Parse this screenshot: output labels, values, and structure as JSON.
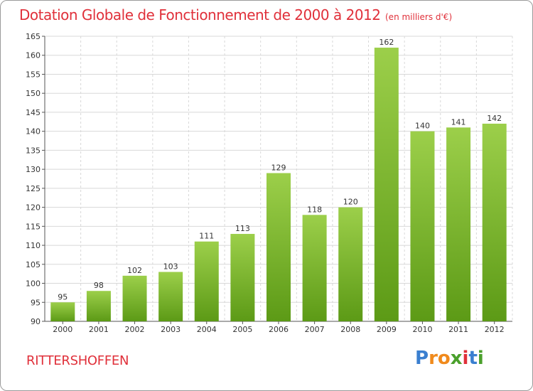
{
  "header": {
    "title": "Dotation Globale de Fonctionnement de 2000 à 2012",
    "subtitle": "(en milliers d'€)"
  },
  "footer": {
    "commune": "RITTERSHOFFEN",
    "logo_text": "Proxiti",
    "logo_letters": [
      {
        "ch": "P",
        "color": "#3a7fd0"
      },
      {
        "ch": "r",
        "color": "#f08a1c"
      },
      {
        "ch": "o",
        "color": "#f08a1c"
      },
      {
        "ch": "x",
        "color": "#4aa02c"
      },
      {
        "ch": "i",
        "color": "#e0303a"
      },
      {
        "ch": "t",
        "color": "#3a7fd0"
      },
      {
        "ch": "i",
        "color": "#4aa02c"
      }
    ]
  },
  "colors": {
    "title": "#e0303a",
    "bar_light": "#9ccf4a",
    "bar_dark": "#5c9a16",
    "grid": "#d8d8d8"
  },
  "chart_data": {
    "type": "bar",
    "title": "Dotation Globale de Fonctionnement de 2000 à 2012",
    "subtitle": "(en milliers d'€)",
    "categories": [
      "2000",
      "2001",
      "2002",
      "2003",
      "2004",
      "2005",
      "2006",
      "2007",
      "2008",
      "2009",
      "2010",
      "2011",
      "2012"
    ],
    "values": [
      95,
      98,
      102,
      103,
      111,
      113,
      129,
      118,
      120,
      162,
      140,
      141,
      142
    ],
    "ylim": [
      90,
      165
    ],
    "yticks": [
      90,
      95,
      100,
      105,
      110,
      115,
      120,
      125,
      130,
      135,
      140,
      145,
      150,
      155,
      160,
      165
    ],
    "grid": true,
    "xlabel": "",
    "ylabel": ""
  }
}
